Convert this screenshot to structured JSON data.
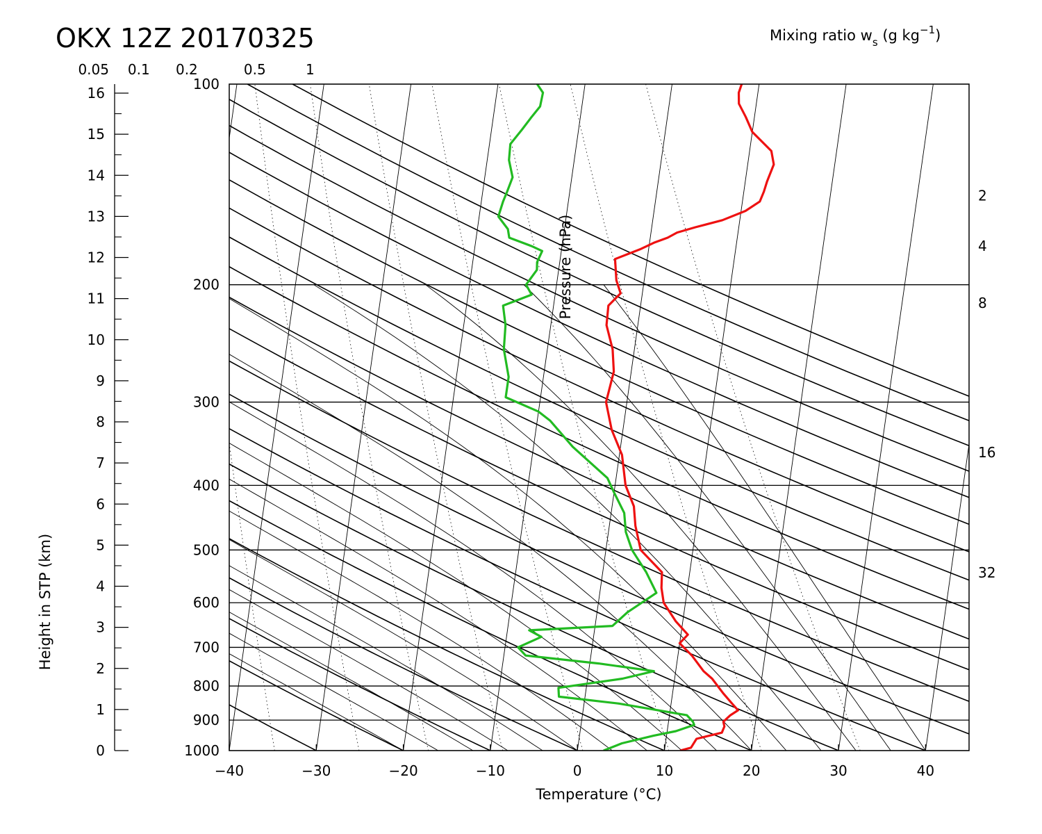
{
  "chart_data": {
    "type": "line",
    "title": "OKX 12Z 20170325",
    "xlabel": "Temperature (°C)",
    "ylabel_left": "Height in STP (km)",
    "ylabel_inner": "Pressure (hPa)",
    "top_axis_label": "Mixing ratio w",
    "top_axis_sub": "s",
    "top_axis_unit_open": " (g kg",
    "top_axis_unit_sup": "−1",
    "top_axis_unit_close": ")",
    "xlim": [
      -40,
      45
    ],
    "pressure_range_hpa": [
      1000,
      100
    ],
    "pressure_scale": "log",
    "skew": "skew-T",
    "grid": true,
    "x_ticks": [
      {
        "value": -40,
        "label": "−40"
      },
      {
        "value": -30,
        "label": "−30"
      },
      {
        "value": -20,
        "label": "−20"
      },
      {
        "value": -10,
        "label": "−10"
      },
      {
        "value": 0,
        "label": "0"
      },
      {
        "value": 10,
        "label": "10"
      },
      {
        "value": 20,
        "label": "20"
      },
      {
        "value": 30,
        "label": "30"
      },
      {
        "value": 40,
        "label": "40"
      }
    ],
    "pressure_ticks": [
      {
        "value": 100,
        "label": "100"
      },
      {
        "value": 200,
        "label": "200"
      },
      {
        "value": 300,
        "label": "300"
      },
      {
        "value": 400,
        "label": "400"
      },
      {
        "value": 500,
        "label": "500"
      },
      {
        "value": 600,
        "label": "600"
      },
      {
        "value": 700,
        "label": "700"
      },
      {
        "value": 800,
        "label": "800"
      },
      {
        "value": 900,
        "label": "900"
      },
      {
        "value": 1000,
        "label": "1000"
      }
    ],
    "height_ticks_km": [
      {
        "value": 0,
        "label": "0"
      },
      {
        "value": 1,
        "label": "1"
      },
      {
        "value": 2,
        "label": "2"
      },
      {
        "value": 3,
        "label": "3"
      },
      {
        "value": 4,
        "label": "4"
      },
      {
        "value": 5,
        "label": "5"
      },
      {
        "value": 6,
        "label": "6"
      },
      {
        "value": 7,
        "label": "7"
      },
      {
        "value": 8,
        "label": "8"
      },
      {
        "value": 9,
        "label": "9"
      },
      {
        "value": 10,
        "label": "10"
      },
      {
        "value": 11,
        "label": "11"
      },
      {
        "value": 12,
        "label": "12"
      },
      {
        "value": 13,
        "label": "13"
      },
      {
        "value": 14,
        "label": "14"
      },
      {
        "value": 15,
        "label": "15"
      },
      {
        "value": 16,
        "label": "16"
      }
    ],
    "height_minor_ticks_km": [
      0.5,
      1.5,
      2.5,
      3.5,
      4.5,
      5.5,
      6.5,
      7.5,
      8.5,
      9.5,
      10.5,
      11.5,
      12.5,
      13.5,
      14.5,
      15.5
    ],
    "mixing_ratio_top_labels": [
      {
        "value": 0.05,
        "label": "0.05"
      },
      {
        "value": 0.1,
        "label": "0.1"
      },
      {
        "value": 0.2,
        "label": "0.2"
      },
      {
        "value": 0.5,
        "label": "0.5"
      },
      {
        "value": 1,
        "label": "1"
      }
    ],
    "mixing_ratio_right_labels": [
      {
        "value": 2,
        "label": "2",
        "p": 147
      },
      {
        "value": 4,
        "label": "4",
        "p": 175
      },
      {
        "value": 8,
        "label": "8",
        "p": 213
      },
      {
        "value": 16,
        "label": "16",
        "p": 357
      },
      {
        "value": 32,
        "label": "32",
        "p": 541
      }
    ],
    "mixing_ratio_lines_gkg": [
      0.05,
      0.1,
      0.2,
      0.5,
      1,
      2,
      4,
      8,
      16,
      32
    ],
    "dry_adiabat_theta_c": [
      -60,
      -50,
      -40,
      -30,
      -20,
      -10,
      0,
      10,
      20,
      30,
      40,
      50,
      60,
      70,
      80,
      90,
      100,
      110,
      120,
      130,
      140,
      150,
      160,
      170
    ],
    "moist_adiabat_theta_w_c": [
      -20,
      -16,
      -12,
      -8,
      -4,
      0,
      4,
      8,
      12,
      16,
      20,
      24,
      28,
      32,
      36,
      40
    ],
    "series": [
      {
        "name": "Temperature",
        "color": "#ee1111",
        "points": [
          [
            1000,
            11.8
          ],
          [
            990,
            13
          ],
          [
            960,
            13.5
          ],
          [
            940,
            16.3
          ],
          [
            920,
            16.5
          ],
          [
            905,
            16.3
          ],
          [
            885,
            17.0
          ],
          [
            870,
            17.8
          ],
          [
            850,
            17.0
          ],
          [
            820,
            15.8
          ],
          [
            780,
            14.3
          ],
          [
            760,
            13.2
          ],
          [
            720,
            11.6
          ],
          [
            690,
            10.0
          ],
          [
            670,
            10.8
          ],
          [
            640,
            9.2
          ],
          [
            600,
            7.5
          ],
          [
            570,
            7.0
          ],
          [
            540,
            6.8
          ],
          [
            500,
            4.0
          ],
          [
            460,
            3.0
          ],
          [
            430,
            2.5
          ],
          [
            400,
            1.2
          ],
          [
            360,
            0.3
          ],
          [
            330,
            -1.3
          ],
          [
            300,
            -2.4
          ],
          [
            285,
            -2.2
          ],
          [
            270,
            -2.0
          ],
          [
            250,
            -2.5
          ],
          [
            230,
            -3.6
          ],
          [
            215,
            -3.7
          ],
          [
            206,
            -2.5
          ],
          [
            197,
            -3.2
          ],
          [
            183,
            -3.7
          ],
          [
            177,
            -1.0
          ],
          [
            173,
            0.5
          ],
          [
            170,
            2.0
          ],
          [
            167,
            3.0
          ],
          [
            164,
            5.0
          ],
          [
            160,
            8.0
          ],
          [
            155,
            10.5
          ],
          [
            150,
            12.0
          ],
          [
            145,
            12.3
          ],
          [
            140,
            12.5
          ],
          [
            132,
            13.0
          ],
          [
            126,
            12.5
          ],
          [
            118,
            10.0
          ],
          [
            112,
            9.0
          ],
          [
            107,
            8.0
          ],
          [
            103,
            7.8
          ],
          [
            100,
            8.0
          ]
        ]
      },
      {
        "name": "Dewpoint",
        "color": "#22bb22",
        "points": [
          [
            1000,
            3.0
          ],
          [
            975,
            5.0
          ],
          [
            950,
            8.5
          ],
          [
            935,
            11.0
          ],
          [
            915,
            13.0
          ],
          [
            905,
            12.8
          ],
          [
            885,
            12.0
          ],
          [
            850,
            4.0
          ],
          [
            830,
            -3.0
          ],
          [
            805,
            -3.2
          ],
          [
            780,
            4.0
          ],
          [
            760,
            7.5
          ],
          [
            740,
            1.0
          ],
          [
            720,
            -7.5
          ],
          [
            700,
            -8.5
          ],
          [
            675,
            -6.0
          ],
          [
            660,
            -7.5
          ],
          [
            650,
            2.0
          ],
          [
            620,
            3.5
          ],
          [
            580,
            6.5
          ],
          [
            540,
            5.0
          ],
          [
            500,
            3.0
          ],
          [
            470,
            2.0
          ],
          [
            440,
            1.5
          ],
          [
            410,
            0.0
          ],
          [
            390,
            -1.0
          ],
          [
            350,
            -5.5
          ],
          [
            320,
            -8.5
          ],
          [
            310,
            -10.0
          ],
          [
            295,
            -14.0
          ],
          [
            275,
            -14.0
          ],
          [
            250,
            -15.0
          ],
          [
            230,
            -15.2
          ],
          [
            215,
            -15.8
          ],
          [
            207,
            -12.7
          ],
          [
            200,
            -13.5
          ],
          [
            190,
            -12.5
          ],
          [
            185,
            -12.6
          ],
          [
            178,
            -12.2
          ],
          [
            175,
            -13.5
          ],
          [
            170,
            -16.2
          ],
          [
            165,
            -16.5
          ],
          [
            158,
            -17.8
          ],
          [
            150,
            -17.5
          ],
          [
            145,
            -17.2
          ],
          [
            138,
            -16.8
          ],
          [
            130,
            -17.5
          ],
          [
            123,
            -17.6
          ],
          [
            117,
            -16.5
          ],
          [
            112,
            -15.6
          ],
          [
            108,
            -14.8
          ],
          [
            103,
            -14.7
          ],
          [
            100,
            -15.5
          ]
        ]
      }
    ]
  }
}
